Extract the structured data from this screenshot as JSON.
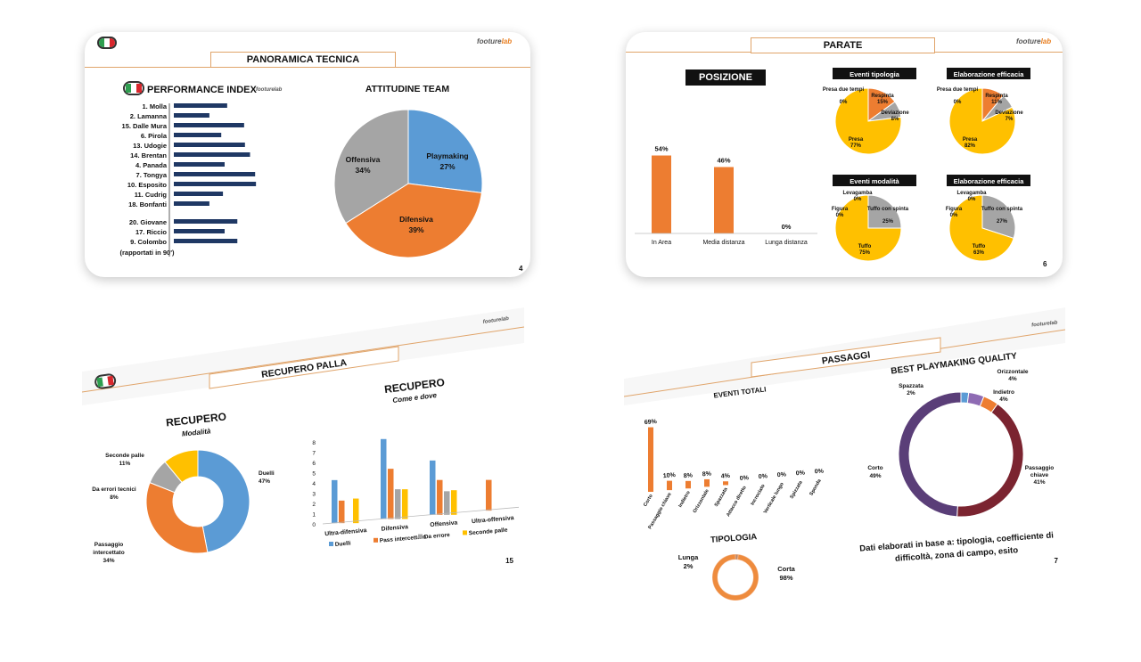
{
  "colors": {
    "blue": "#5b9bd5",
    "orange": "#ed7d31",
    "gray": "#a5a5a5",
    "yellow": "#ffc000",
    "darkred": "#7b2430",
    "purple": "#5a3e78",
    "violet": "#8e6bb3",
    "navy": "#1f3864",
    "accent_line": "#e0a46a"
  },
  "logo": {
    "main": "footure",
    "accent": "lab"
  },
  "slide1": {
    "title": "PANORAMICA TECNICA",
    "perf_title": "PERFORMANCE INDEX",
    "perf_note": "(rapportati in 90')",
    "page": "4",
    "perf_players": [
      {
        "name": "1. Molla",
        "value": 0.63
      },
      {
        "name": "2. Lamanna",
        "value": 0.42
      },
      {
        "name": "15. Dalle Mura",
        "value": 0.83
      },
      {
        "name": "6. Pirola",
        "value": 0.56
      },
      {
        "name": "13. Udogie",
        "value": 0.84
      },
      {
        "name": "14. Brentan",
        "value": 0.9
      },
      {
        "name": "4. Panada",
        "value": 0.6
      },
      {
        "name": "7. Tongya",
        "value": 0.96
      },
      {
        "name": "10. Esposito",
        "value": 0.97
      },
      {
        "name": "11. Cudrig",
        "value": 0.58
      },
      {
        "name": "18. Bonfanti",
        "value": 0.42
      }
    ],
    "perf_players_2": [
      {
        "name": "20. Giovane",
        "value": 0.75
      },
      {
        "name": "17. Riccio",
        "value": 0.6
      },
      {
        "name": "9. Colombo",
        "value": 0.75
      }
    ],
    "pie_title": "ATTITUDINE TEAM",
    "pie": [
      {
        "label": "Playmaking",
        "pct": "27%",
        "value": 27
      },
      {
        "label": "Difensiva",
        "pct": "39%",
        "value": 39
      },
      {
        "label": "Offensiva",
        "pct": "34%",
        "value": 34
      }
    ]
  },
  "slide2": {
    "title": "PARATE",
    "page": "6",
    "pos_title": "POSIZIONE",
    "bars": [
      {
        "label": "In Area",
        "value": 54,
        "text": "54%"
      },
      {
        "label": "Media distanza",
        "value": 46,
        "text": "46%"
      },
      {
        "label": "Lunga distanza",
        "value": 0,
        "text": "0%"
      }
    ],
    "pies": [
      {
        "title": "Eventi tipologia",
        "slices": [
          {
            "label": "Respinta",
            "pct": "15%",
            "value": 15
          },
          {
            "label": "Deviazione",
            "pct": "8%",
            "value": 8
          },
          {
            "label": "Presa",
            "pct": "77%",
            "value": 77
          },
          {
            "label": "Presa due tempi",
            "pct": "0%",
            "value": 0
          }
        ]
      },
      {
        "title": "Elaborazione efficacia",
        "slices": [
          {
            "label": "Respinta",
            "pct": "11%",
            "value": 11
          },
          {
            "label": "Deviazione",
            "pct": "7%",
            "value": 7
          },
          {
            "label": "Presa",
            "pct": "82%",
            "value": 82
          },
          {
            "label": "Presa due tempi",
            "pct": "0%",
            "value": 0
          }
        ]
      },
      {
        "title": "Eventi modalità",
        "slices": [
          {
            "label": "Tuffo con spinta",
            "pct": "25%",
            "value": 25
          },
          {
            "label": "Tuffo",
            "pct": "75%",
            "value": 75
          },
          {
            "label": "Figura",
            "pct": "0%",
            "value": 0
          },
          {
            "label": "Levagamba",
            "pct": "0%",
            "value": 0
          }
        ]
      },
      {
        "title": "Elaborazione efficacia",
        "slices": [
          {
            "label": "Tuffo con spinta",
            "pct": "27%",
            "value": 27
          },
          {
            "label": "Tuffo",
            "pct": "63%",
            "value": 63
          },
          {
            "label": "Figura",
            "pct": "0%",
            "value": 0
          },
          {
            "label": "Levagamba",
            "pct": "0%",
            "value": 0
          }
        ]
      }
    ]
  },
  "slide3": {
    "title": "RECUPERO PALLA",
    "page": "15",
    "donut_title": "RECUPERO",
    "donut_sub": "Modalità",
    "donut": [
      {
        "label": "Duelli",
        "pct": "47%",
        "value": 47
      },
      {
        "label": "Passaggio intercettato",
        "pct": "34%",
        "value": 34
      },
      {
        "label": "Da errori tecnici",
        "pct": "8%",
        "value": 8
      },
      {
        "label": "Seconde palle",
        "pct": "11%",
        "value": 11
      }
    ],
    "bar_title": "RECUPERO",
    "bar_sub": "Come e dove",
    "y_ticks": [
      "0",
      "1",
      "2",
      "3",
      "4",
      "5",
      "6",
      "7",
      "8"
    ],
    "categories": [
      "Ultra-difensiva",
      "Difensiva",
      "Offensiva",
      "Ultra-offensiva"
    ],
    "series": [
      {
        "name": "Duelli",
        "values": [
          4.2,
          7.8,
          5.3,
          0
        ]
      },
      {
        "name": "Pass intercettato",
        "values": [
          2.2,
          4.9,
          3.4,
          3.0
        ]
      },
      {
        "name": "Da errore",
        "values": [
          0,
          2.9,
          2.3,
          0
        ]
      },
      {
        "name": "Seconde palle",
        "values": [
          2.4,
          2.9,
          2.4,
          0
        ]
      }
    ]
  },
  "slide4": {
    "title": "PASSAGGI",
    "page": "7",
    "events_title": "EVENTI TOTALI",
    "events": [
      {
        "label": "Corto",
        "value": 69,
        "text": "69%"
      },
      {
        "label": "Passaggio chiave",
        "value": 10,
        "text": "10%"
      },
      {
        "label": "Indietro",
        "value": 8,
        "text": "8%"
      },
      {
        "label": "Orizzontale",
        "value": 8,
        "text": "8%"
      },
      {
        "label": "Spazzata",
        "value": 4,
        "text": "4%"
      },
      {
        "label": "Attacco diretto",
        "value": 0,
        "text": "0%"
      },
      {
        "label": "Incrociato",
        "value": 0,
        "text": "0%"
      },
      {
        "label": "Verticale lungo",
        "value": 0,
        "text": "0%"
      },
      {
        "label": "Spizzata",
        "value": 0,
        "text": "0%"
      },
      {
        "label": "Sponda",
        "value": 0,
        "text": "0%"
      }
    ],
    "best_title": "BEST PLAYMAKING QUALITY",
    "best": [
      {
        "label": "Corto",
        "pct": "49%",
        "value": 49
      },
      {
        "label": "Passaggio chiave",
        "pct": "41%",
        "value": 41
      },
      {
        "label": "Indietro",
        "pct": "4%",
        "value": 4
      },
      {
        "label": "Orizzontale",
        "pct": "4%",
        "value": 4
      },
      {
        "label": "Spazzata",
        "pct": "2%",
        "value": 2
      }
    ],
    "note": "Dati elaborati in base a: tipologia, coefficiente di difficoltà, zona di campo, esito",
    "tip_title": "TIPOLOGIA",
    "tip": [
      {
        "label": "Lunga",
        "pct": "2%",
        "value": 2
      },
      {
        "label": "Corta",
        "pct": "98%",
        "value": 98
      }
    ]
  }
}
